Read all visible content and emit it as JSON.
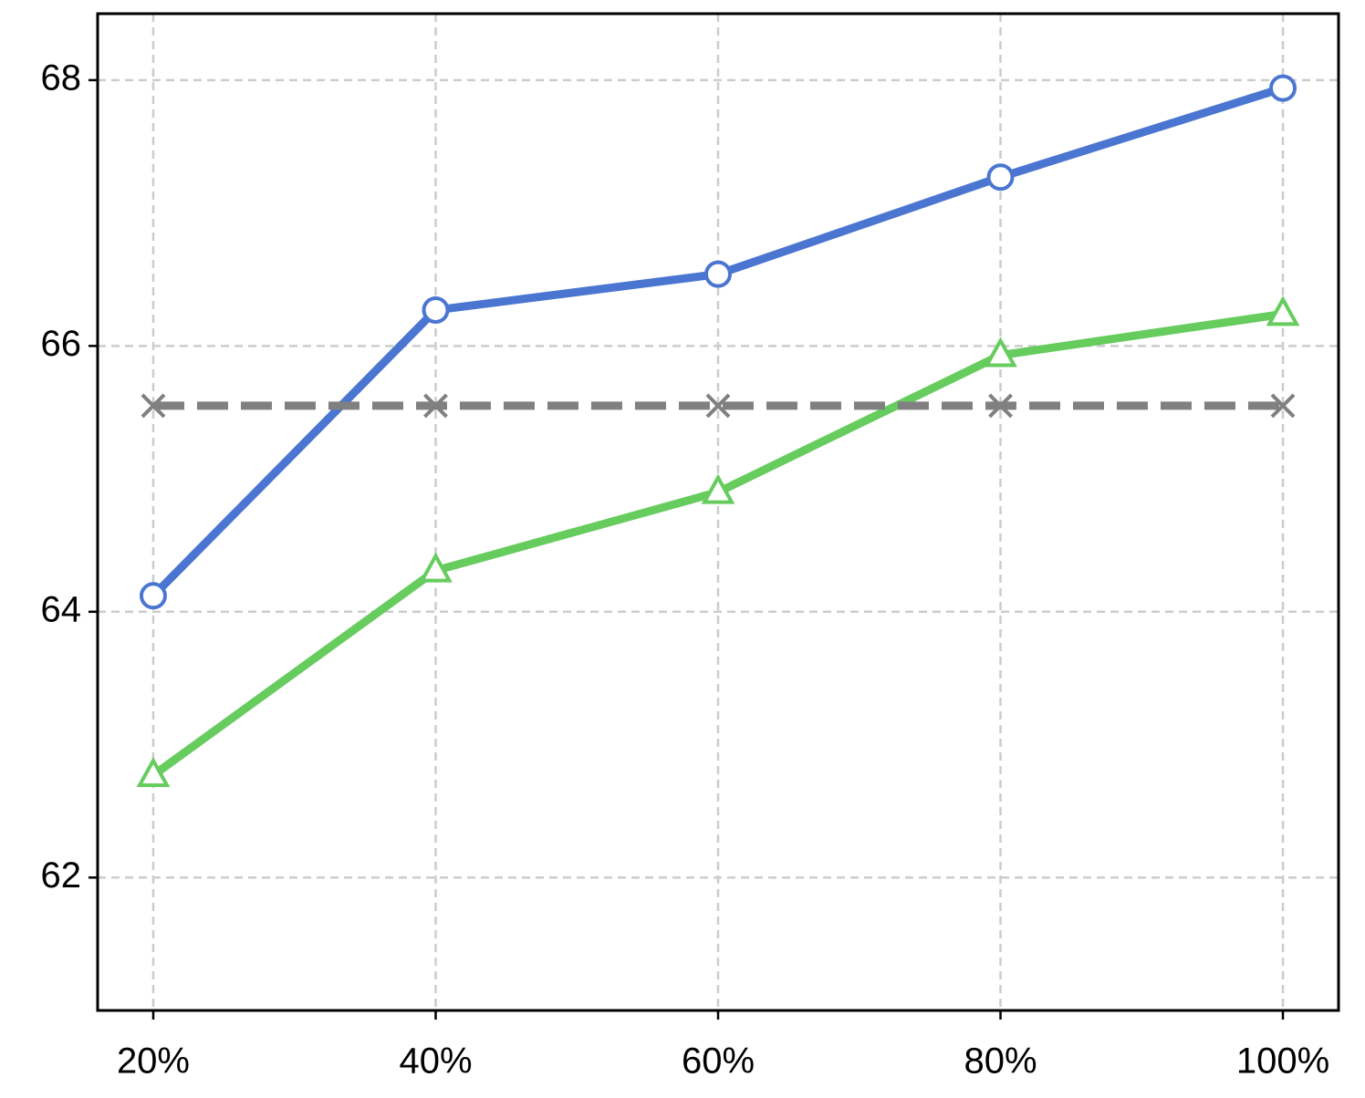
{
  "chart_data": {
    "type": "line",
    "categories": [
      "20%",
      "40%",
      "60%",
      "80%",
      "100%"
    ],
    "series": [
      {
        "color": "#4a76d1",
        "marker": "circle",
        "dash": false,
        "values": [
          64.12,
          66.27,
          66.54,
          67.27,
          67.94
        ]
      },
      {
        "color": "#66cc5e",
        "marker": "triangle",
        "dash": false,
        "values": [
          62.77,
          64.31,
          64.9,
          65.93,
          66.24
        ]
      },
      {
        "color": "#808080",
        "marker": "x",
        "dash": true,
        "values": [
          65.55,
          65.55,
          65.55,
          65.55,
          65.55
        ]
      }
    ],
    "ylim": [
      61.0,
      68.5
    ],
    "yticks": [
      62,
      64,
      66,
      68
    ],
    "grid": true
  }
}
